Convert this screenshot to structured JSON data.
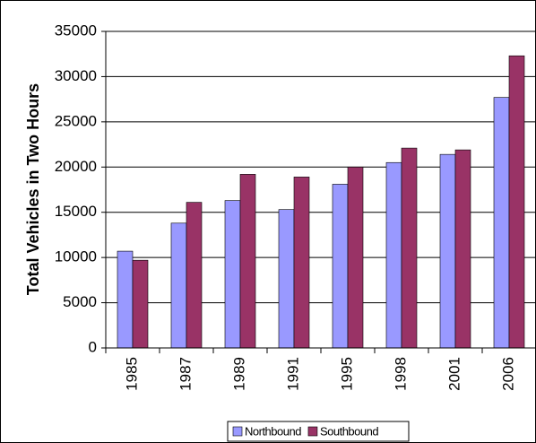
{
  "chart_data": {
    "type": "bar",
    "ylabel": "Total Vehicles in Two Hours",
    "categories": [
      "1985",
      "1987",
      "1989",
      "1991",
      "1995",
      "1998",
      "2001",
      "2006"
    ],
    "series": [
      {
        "name": "Northbound",
        "color": "#9999ff",
        "values": [
          10700,
          13800,
          16300,
          15300,
          18100,
          20500,
          21400,
          27700
        ]
      },
      {
        "name": "Southbound",
        "color": "#993366",
        "values": [
          9700,
          16100,
          19200,
          18900,
          20000,
          22100,
          21900,
          32300
        ]
      }
    ],
    "ylim": [
      0,
      35000
    ],
    "yticks": [
      0,
      5000,
      10000,
      15000,
      20000,
      25000,
      30000,
      35000
    ],
    "grid": true,
    "legend": "bottom"
  }
}
